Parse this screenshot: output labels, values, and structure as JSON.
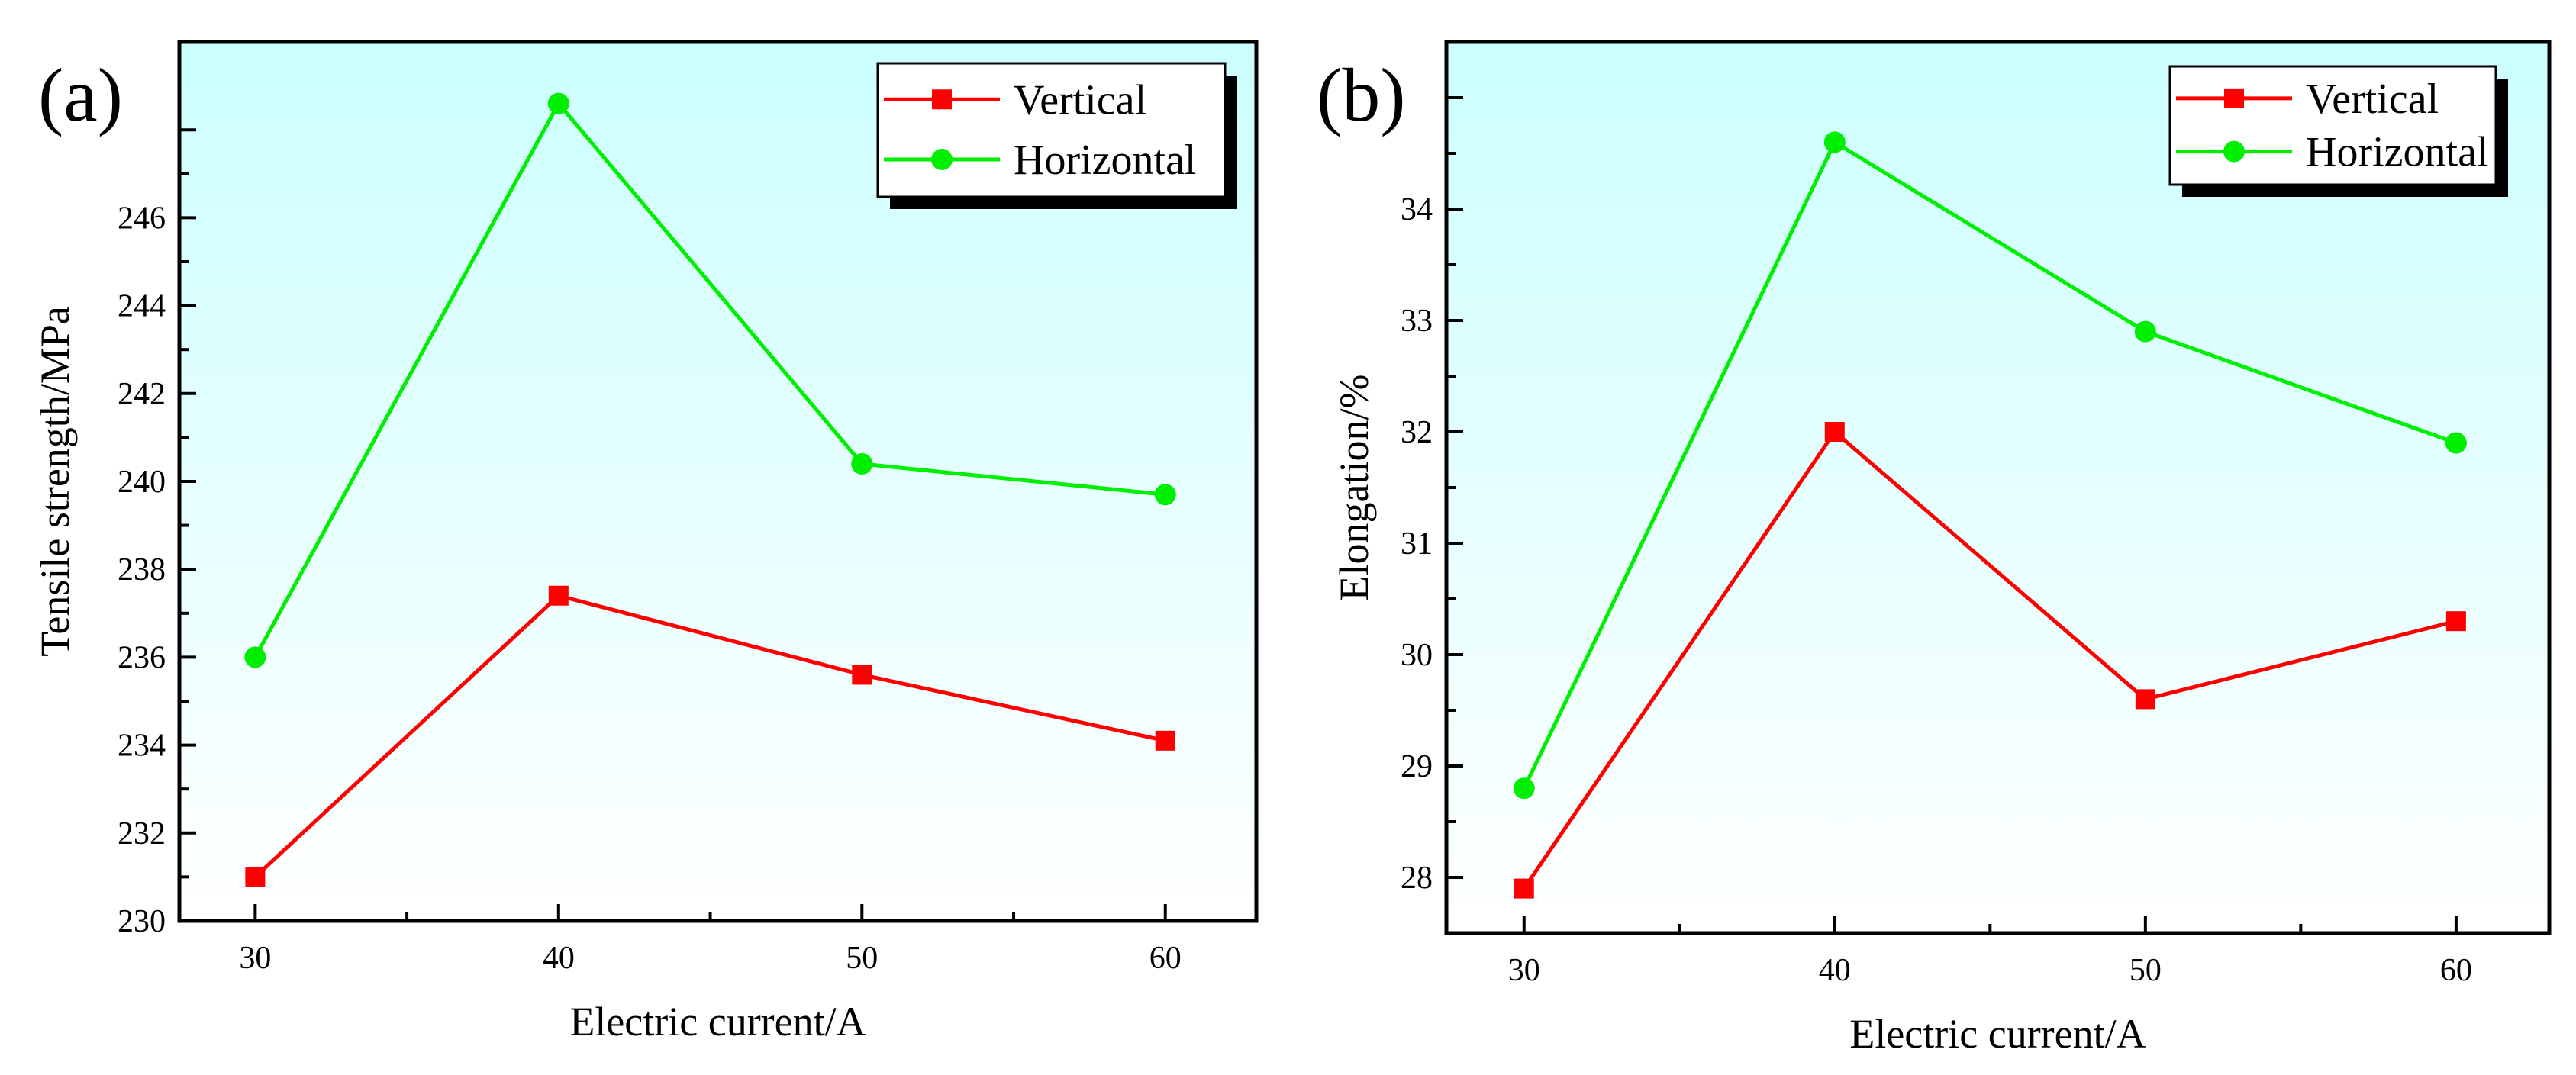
{
  "chart_data": [
    {
      "type": "line",
      "panel_label": "(a)",
      "x": [
        30,
        40,
        50,
        60
      ],
      "xticks": [
        "30",
        "40",
        "50",
        "60"
      ],
      "xlim": [
        27.5,
        63
      ],
      "ylim": [
        230,
        250
      ],
      "yticks": [
        "230",
        "232",
        "234",
        "236",
        "238",
        "240",
        "242",
        "244",
        "246"
      ],
      "xlabel": "Electric current/A",
      "ylabel": "Tensile strength/MPa",
      "series": [
        {
          "name": "Vertical",
          "color": "#ff0000",
          "marker": "square",
          "values": [
            231.0,
            237.4,
            235.6,
            234.1
          ]
        },
        {
          "name": "Horizontal",
          "color": "#00ee00",
          "marker": "circle",
          "values": [
            236.0,
            248.6,
            240.4,
            239.7
          ]
        }
      ],
      "legend": "top-right",
      "background": {
        "top": "#ccffff",
        "bottom": "#ffffff"
      }
    },
    {
      "type": "line",
      "panel_label": "(b)",
      "x": [
        30,
        40,
        50,
        60
      ],
      "xticks": [
        "30",
        "40",
        "50",
        "60"
      ],
      "xlim": [
        27.5,
        63
      ],
      "ylim": [
        27.5,
        35.5
      ],
      "yticks": [
        "28",
        "29",
        "30",
        "31",
        "32",
        "33",
        "34"
      ],
      "xlabel": "Electric current/A",
      "ylabel": "Elongation/%",
      "series": [
        {
          "name": "Vertical",
          "color": "#ff0000",
          "marker": "square",
          "values": [
            27.9,
            32.0,
            29.6,
            30.3
          ]
        },
        {
          "name": "Horizontal",
          "color": "#00ee00",
          "marker": "circle",
          "values": [
            28.8,
            34.6,
            32.9,
            31.9
          ]
        }
      ],
      "legend": "top-right",
      "background": {
        "top": "#ccffff",
        "bottom": "#ffffff"
      }
    }
  ]
}
